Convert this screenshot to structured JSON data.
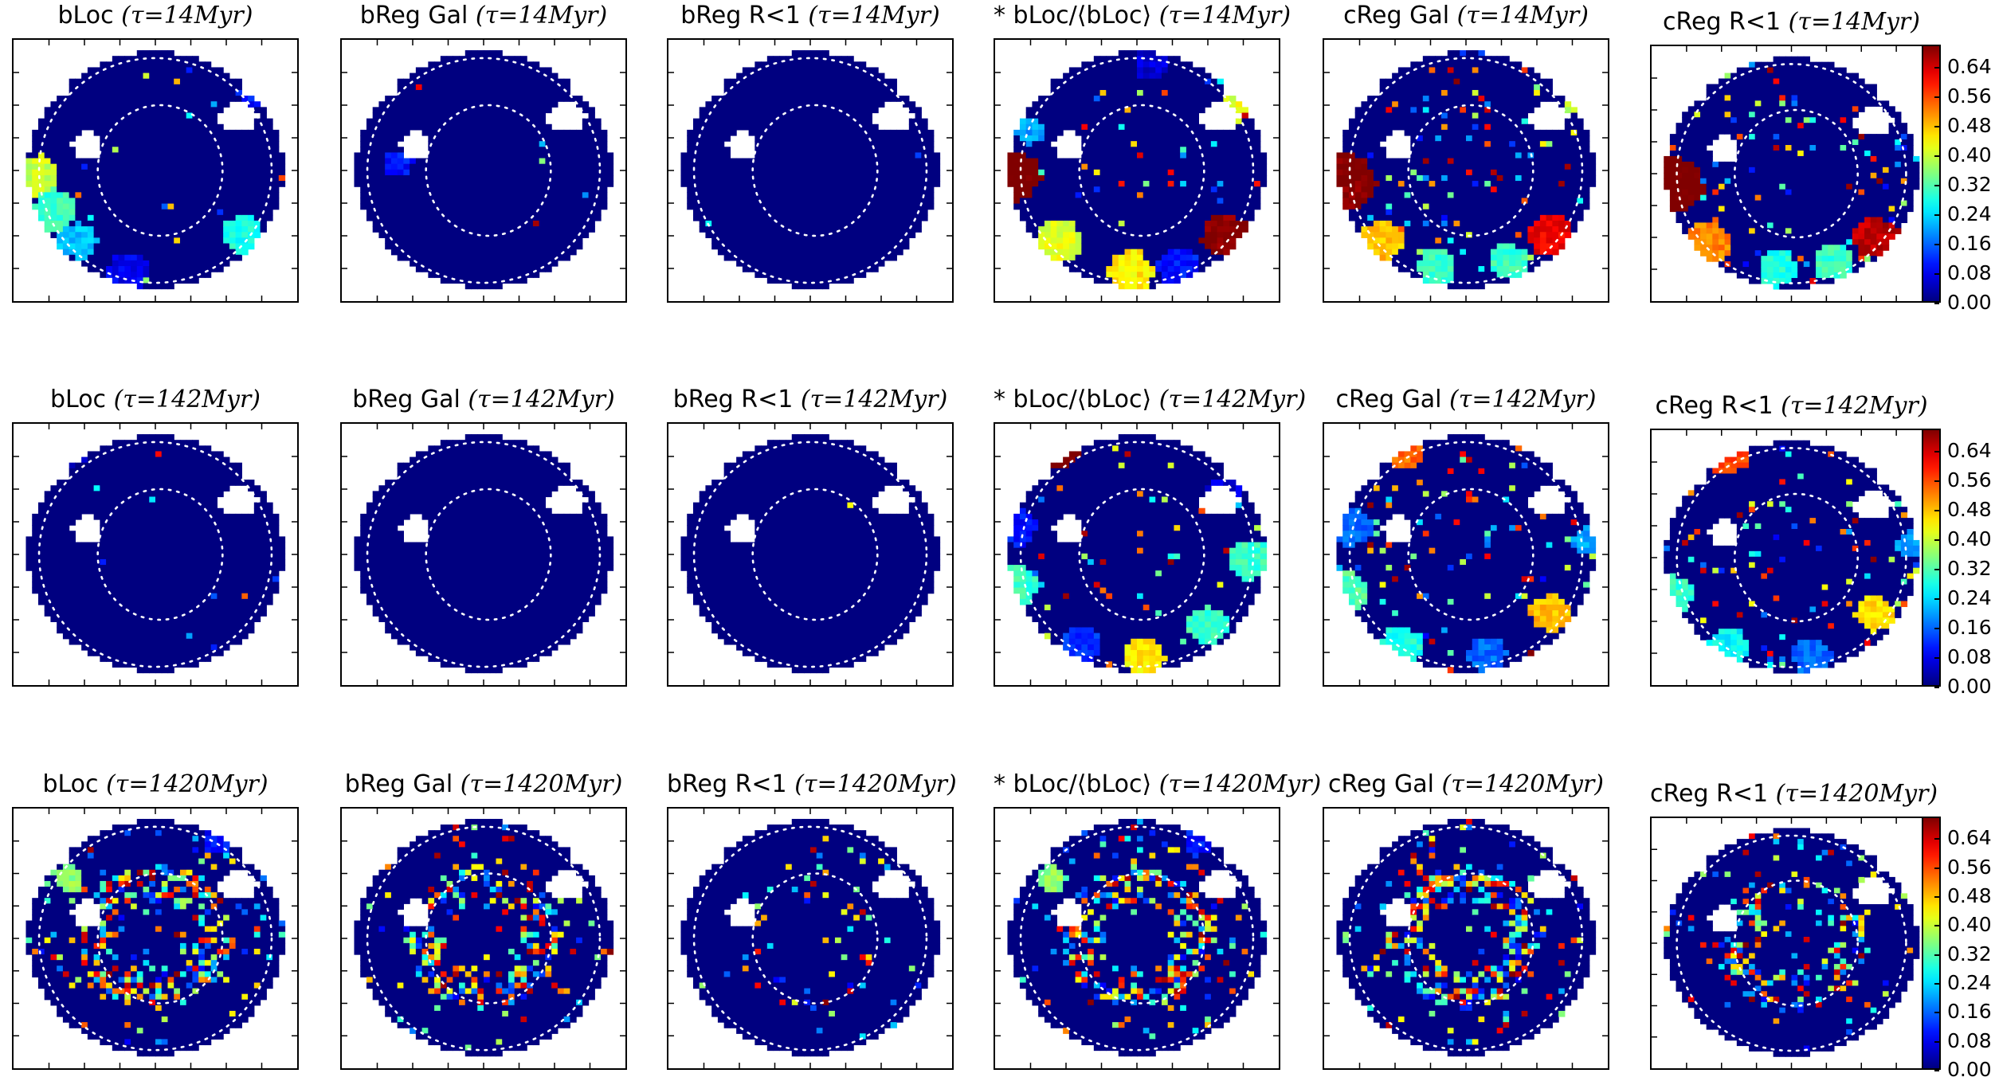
{
  "figure": {
    "rows": [
      {
        "tau": "14",
        "panels": [
          {
            "title": "bLoc",
            "intensity": 0.15,
            "patches": [
              [
                -0.85,
                -0.05,
                0.16,
                0.4
              ],
              [
                -0.72,
                -0.32,
                0.16,
                0.3
              ],
              [
                -0.55,
                -0.55,
                0.14,
                0.22
              ],
              [
                -0.2,
                -0.78,
                0.15,
                0.08
              ],
              [
                0.62,
                -0.5,
                0.14,
                0.28
              ],
              [
                0.7,
                0.6,
                0.12,
                0.1
              ]
            ]
          },
          {
            "title": "bReg Gal",
            "intensity": 0.05,
            "patches": [
              [
                -0.6,
                0.05,
                0.1,
                0.1
              ]
            ]
          },
          {
            "title": "bReg R<1",
            "intensity": 0.01,
            "patches": []
          },
          {
            "title": "* bLoc/⟨bLoc⟩",
            "intensity": 0.35,
            "patches": [
              [
                -0.85,
                -0.05,
                0.18,
                0.72
              ],
              [
                -0.55,
                -0.55,
                0.16,
                0.42
              ],
              [
                -0.05,
                -0.78,
                0.16,
                0.45
              ],
              [
                0.3,
                -0.75,
                0.15,
                0.1
              ],
              [
                0.62,
                -0.5,
                0.16,
                0.7
              ],
              [
                0.75,
                0.55,
                0.13,
                0.42
              ],
              [
                0.68,
                0.7,
                0.11,
                0.25
              ],
              [
                0.1,
                0.8,
                0.12,
                0.06
              ],
              [
                -0.75,
                0.3,
                0.1,
                0.2
              ]
            ]
          },
          {
            "title": "cReg Gal",
            "intensity": 0.65,
            "patches": [
              [
                -0.85,
                -0.1,
                0.22,
                0.7
              ],
              [
                -0.6,
                -0.55,
                0.16,
                0.48
              ],
              [
                -0.2,
                -0.75,
                0.14,
                0.3
              ],
              [
                0.3,
                -0.7,
                0.14,
                0.3
              ],
              [
                0.6,
                -0.5,
                0.16,
                0.62
              ],
              [
                0.8,
                0.55,
                0.1,
                0.42
              ],
              [
                0.65,
                0.75,
                0.09,
                0.48
              ]
            ]
          },
          {
            "title": "cReg R<1",
            "intensity": 0.65,
            "patches": [
              [
                -0.85,
                -0.1,
                0.22,
                0.72
              ],
              [
                -0.6,
                -0.55,
                0.16,
                0.52
              ],
              [
                -0.1,
                -0.75,
                0.14,
                0.28
              ],
              [
                0.3,
                -0.7,
                0.14,
                0.3
              ],
              [
                0.6,
                -0.5,
                0.16,
                0.66
              ],
              [
                0.8,
                0.55,
                0.1,
                0.4
              ]
            ]
          }
        ]
      },
      {
        "tau": "142",
        "panels": [
          {
            "title": "bLoc",
            "intensity": 0.02,
            "patches": [
              [
                -0.6,
                0.8,
                0.14,
                0.06
              ]
            ]
          },
          {
            "title": "bReg Gal",
            "intensity": 0.01,
            "patches": []
          },
          {
            "title": "bReg R<1",
            "intensity": 0.01,
            "patches": []
          },
          {
            "title": "* bLoc/⟨bLoc⟩",
            "intensity": 0.35,
            "patches": [
              [
                -0.55,
                0.8,
                0.15,
                0.72
              ],
              [
                -0.85,
                0.2,
                0.14,
                0.1
              ],
              [
                -0.85,
                -0.25,
                0.16,
                0.3
              ],
              [
                -0.4,
                -0.7,
                0.14,
                0.12
              ],
              [
                0.05,
                -0.8,
                0.15,
                0.45
              ],
              [
                0.5,
                -0.55,
                0.14,
                0.3
              ],
              [
                0.8,
                -0.05,
                0.15,
                0.3
              ],
              [
                0.6,
                0.45,
                0.13,
                0.06
              ]
            ]
          },
          {
            "title": "cReg Gal",
            "intensity": 0.65,
            "patches": [
              [
                -0.45,
                0.8,
                0.16,
                0.54
              ],
              [
                -0.8,
                0.2,
                0.14,
                0.16
              ],
              [
                -0.85,
                -0.3,
                0.16,
                0.32
              ],
              [
                -0.45,
                -0.7,
                0.14,
                0.28
              ],
              [
                0.15,
                -0.78,
                0.14,
                0.16
              ],
              [
                0.6,
                -0.45,
                0.14,
                0.48
              ],
              [
                0.85,
                0.1,
                0.1,
                0.2
              ]
            ]
          },
          {
            "title": "cReg R<1",
            "intensity": 0.65,
            "patches": [
              [
                -0.45,
                0.8,
                0.16,
                0.56
              ],
              [
                -0.85,
                -0.3,
                0.16,
                0.3
              ],
              [
                -0.45,
                -0.7,
                0.14,
                0.26
              ],
              [
                0.15,
                -0.78,
                0.14,
                0.16
              ],
              [
                0.6,
                -0.45,
                0.14,
                0.46
              ],
              [
                0.85,
                0.1,
                0.1,
                0.2
              ]
            ]
          }
        ]
      },
      {
        "tau": "1420",
        "panels": [
          {
            "title": "bLoc",
            "intensity": 0.45,
            "ring": true,
            "patches": [
              [
                -0.6,
                0.45,
                0.1,
                0.36
              ],
              [
                -0.7,
                -0.7,
                0.08,
                0.3
              ],
              [
                0.45,
                0.75,
                0.12,
                0.1
              ]
            ]
          },
          {
            "title": "bReg Gal",
            "intensity": 0.4,
            "ring": true,
            "patches": []
          },
          {
            "title": "bReg R<1",
            "intensity": 0.1,
            "ring": true,
            "patches": []
          },
          {
            "title": "* bLoc/⟨bLoc⟩",
            "intensity": 0.45,
            "ring": true,
            "patches": [
              [
                -0.6,
                0.45,
                0.1,
                0.36
              ],
              [
                0.45,
                0.75,
                0.12,
                0.1
              ]
            ]
          },
          {
            "title": "cReg Gal",
            "intensity": 0.48,
            "ring": true,
            "patches": []
          },
          {
            "title": "cReg R<1",
            "intensity": 0.35,
            "ring": true,
            "patches": []
          }
        ]
      }
    ],
    "tau_unit": "Myr",
    "tau_symbol": "τ",
    "colorbar": {
      "min": 0.0,
      "max": 0.7,
      "ticks": [
        "0.00",
        "0.08",
        "0.16",
        "0.24",
        "0.32",
        "0.40",
        "0.48",
        "0.56",
        "0.64"
      ],
      "colormap": "jet"
    }
  },
  "chart_data": {
    "type": "heatmap",
    "layout": "3x6 grid of spatial maps",
    "colormap": "jet",
    "color_range": [
      0.0,
      0.7
    ],
    "colorbar_ticks": [
      0.0,
      0.08,
      0.16,
      0.24,
      0.32,
      0.4,
      0.48,
      0.56,
      0.64
    ],
    "row_times_myr": [
      14,
      142,
      1420
    ],
    "column_titles": [
      "bLoc",
      "bReg Gal",
      "bReg R<1",
      "* bLoc/⟨bLoc⟩",
      "cReg Gal",
      "cReg R<1"
    ],
    "annotations": "two dotted white ellipses per panel; circular hole at upper left of each map"
  }
}
